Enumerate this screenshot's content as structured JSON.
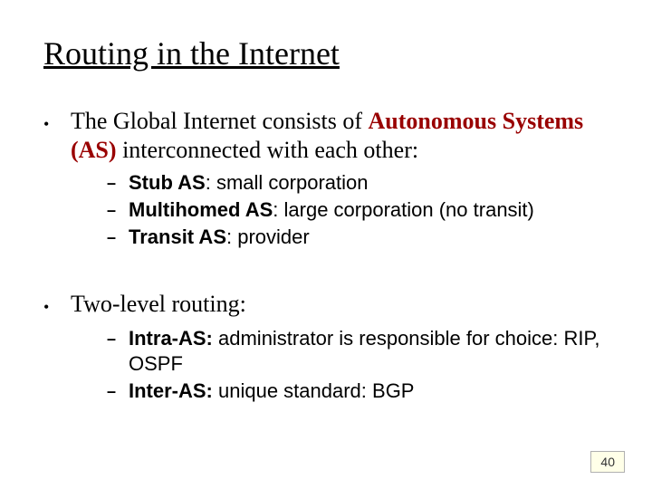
{
  "title": "Routing in the Internet",
  "colors": {
    "emphasis": "#990000",
    "text": "#000000",
    "background": "#ffffff",
    "pagenum_bg": "#ffffe8",
    "pagenum_border": "#b0b0b0"
  },
  "fonts": {
    "title_size_pt": 36,
    "l1_size_pt": 26,
    "l2_size_pt": 22,
    "l1_family": "Times New Roman",
    "l2_family": "Arial"
  },
  "bullets": [
    {
      "pre": "The Global Internet consists of ",
      "emph": "Autonomous Systems (AS)",
      "post": " interconnected with each other:",
      "sub": [
        {
          "bold": "Stub AS",
          "rest": ": small corporation"
        },
        {
          "bold": "Multihomed AS",
          "rest": ": large corporation (no transit)"
        },
        {
          "bold": "Transit AS",
          "rest": ": provider"
        }
      ]
    },
    {
      "pre": "Two-level routing:",
      "emph": "",
      "post": "",
      "sub": [
        {
          "bold": "Intra-AS:",
          "rest": " administrator is responsible for choice: RIP, OSPF"
        },
        {
          "bold": "Inter-AS:",
          "rest": " unique standard: BGP"
        }
      ]
    }
  ],
  "page_number": "40"
}
